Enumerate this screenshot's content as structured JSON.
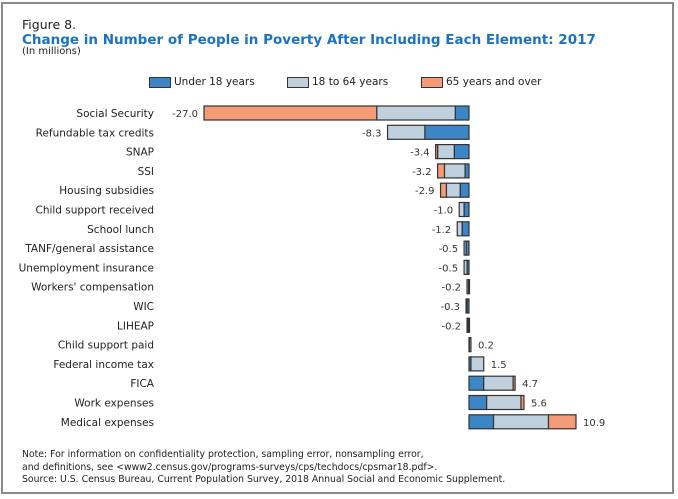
{
  "figure_label": "Figure 8.",
  "title": "Change in Number of People in Poverty After Including Each Element: 2017",
  "subtitle": "(In millions)",
  "notes": [
    "Note: For information on confidentiality protection, sampling error, nonsampling error,",
    "and definitions, see <www2.census.gov/programs-surveys/cps/techdocs/cpsmar18.pdf>.",
    "Source: U.S. Census Bureau, Current Population Survey, 2018 Annual Social and Economic Supplement."
  ],
  "colors": {
    "under18": "#3d86c6",
    "age18to64": "#c0d0dc",
    "age65plus": "#f59b78",
    "title": "#1a73c2"
  },
  "chart_data": {
    "type": "bar",
    "orientation": "horizontal",
    "stacked": true,
    "legend_placement": "top",
    "grid": false,
    "xlim": [
      -27.0,
      10.9
    ],
    "series": [
      {
        "name": "Under 18 years",
        "key": "under18"
      },
      {
        "name": "18 to 64 years",
        "key": "age18to64"
      },
      {
        "name": "65 years and over",
        "key": "age65plus"
      }
    ],
    "categories": [
      {
        "label": "Social Security",
        "total": "-27.0",
        "under18": -1.4,
        "age18to64": -8.0,
        "age65plus": -17.6
      },
      {
        "label": "Refundable tax credits",
        "total": "-8.3",
        "under18": -4.5,
        "age18to64": -3.8,
        "age65plus": 0
      },
      {
        "label": "SNAP",
        "total": "-3.4",
        "under18": -1.5,
        "age18to64": -1.7,
        "age65plus": -0.2
      },
      {
        "label": "SSI",
        "total": "-3.2",
        "under18": -0.4,
        "age18to64": -2.1,
        "age65plus": -0.7
      },
      {
        "label": "Housing subsidies",
        "total": "-2.9",
        "under18": -0.9,
        "age18to64": -1.4,
        "age65plus": -0.6
      },
      {
        "label": "Child support received",
        "total": "-1.0",
        "under18": -0.5,
        "age18to64": -0.5,
        "age65plus": 0
      },
      {
        "label": "School lunch",
        "total": "-1.2",
        "under18": -0.7,
        "age18to64": -0.5,
        "age65plus": 0
      },
      {
        "label": "TANF/general assistance",
        "total": "-0.5",
        "under18": -0.3,
        "age18to64": -0.2,
        "age65plus": 0
      },
      {
        "label": "Unemployment insurance",
        "total": "-0.5",
        "under18": -0.2,
        "age18to64": -0.3,
        "age65plus": 0
      },
      {
        "label": "Workers' compensation",
        "total": "-0.2",
        "under18": -0.05,
        "age18to64": -0.15,
        "age65plus": 0
      },
      {
        "label": "WIC",
        "total": "-0.3",
        "under18": -0.2,
        "age18to64": -0.1,
        "age65plus": 0
      },
      {
        "label": "LIHEAP",
        "total": "-0.2",
        "under18": -0.05,
        "age18to64": -0.1,
        "age65plus": -0.05
      },
      {
        "label": "Child support paid",
        "total": "0.2",
        "under18": 0.05,
        "age18to64": 0.15,
        "age65plus": 0
      },
      {
        "label": "Federal income tax",
        "total": "1.5",
        "under18": 0.2,
        "age18to64": 1.3,
        "age65plus": 0
      },
      {
        "label": "FICA",
        "total": "4.7",
        "under18": 1.5,
        "age18to64": 3.0,
        "age65plus": 0.2
      },
      {
        "label": "Work expenses",
        "total": "5.6",
        "under18": 1.8,
        "age18to64": 3.5,
        "age65plus": 0.3
      },
      {
        "label": "Medical expenses",
        "total": "10.9",
        "under18": 2.5,
        "age18to64": 5.6,
        "age65plus": 2.8
      }
    ]
  }
}
